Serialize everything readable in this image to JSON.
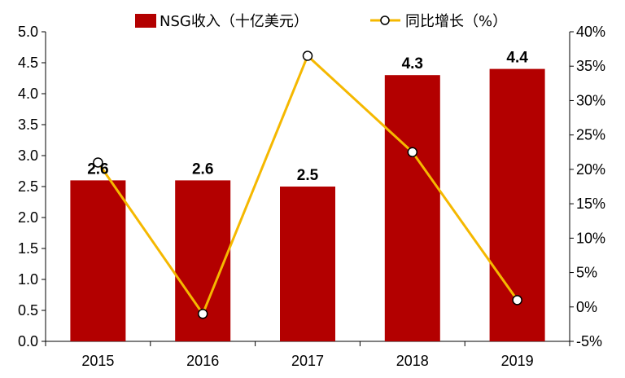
{
  "chart_data": {
    "type": "bar+line",
    "categories": [
      "2015",
      "2016",
      "2017",
      "2018",
      "2019"
    ],
    "series": [
      {
        "name": "NSG收入（十亿美元）",
        "type": "bar",
        "axis": "left",
        "values": [
          2.6,
          2.6,
          2.5,
          4.3,
          4.4
        ],
        "data_labels": [
          "2.6",
          "2.6",
          "2.5",
          "4.3",
          "4.4"
        ],
        "color": "#b30000"
      },
      {
        "name": "同比增长（%）",
        "type": "line",
        "axis": "right",
        "values": [
          21,
          -1,
          36.5,
          22.5,
          1
        ],
        "color": "#f5b800"
      }
    ],
    "left_axis": {
      "ylim": [
        0,
        5
      ],
      "ticks": [
        "0.0",
        "0.5",
        "1.0",
        "1.5",
        "2.0",
        "2.5",
        "3.0",
        "3.5",
        "4.0",
        "4.5",
        "5.0"
      ]
    },
    "right_axis": {
      "ylim": [
        -5,
        40
      ],
      "ticks": [
        "-5%",
        "0%",
        "5%",
        "10%",
        "15%",
        "20%",
        "25%",
        "30%",
        "35%",
        "40%"
      ]
    },
    "legend_position": "top",
    "grid": false
  }
}
